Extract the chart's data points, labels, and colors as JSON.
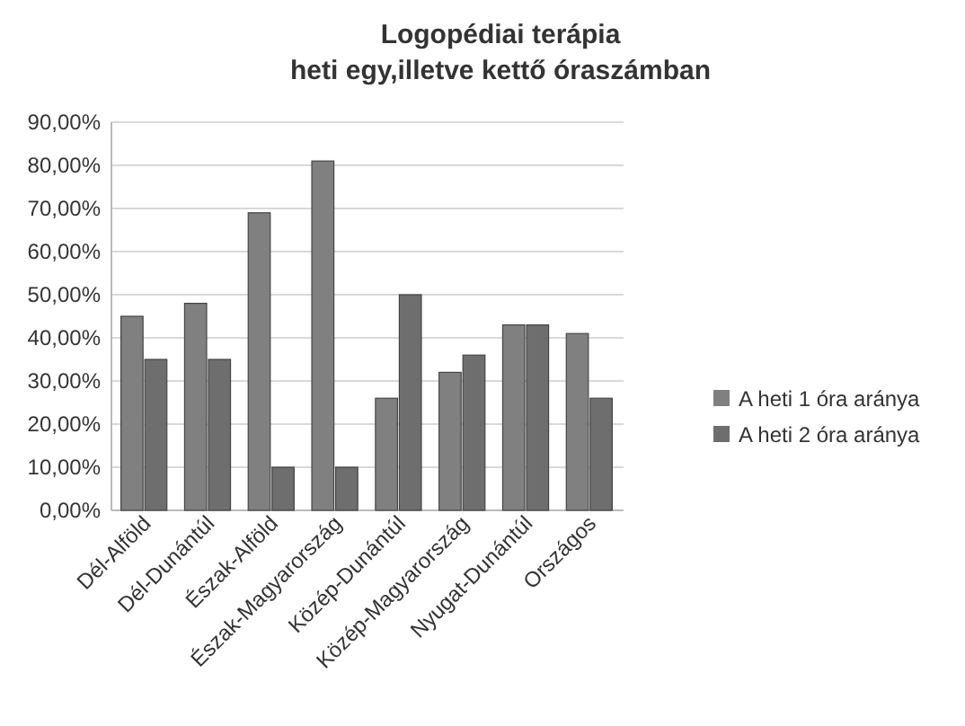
{
  "chart_data": {
    "type": "bar",
    "title": "Logopédiai terápia\nheti egy,illetve kettő óraszámban",
    "categories": [
      "Dél-Alföld",
      "Dél-Dunántúl",
      "Észak-Alföld",
      "Észak-Magyarország",
      "Közép-Dunántúl",
      "Közép-Magyarország",
      "Nyugat-Dunántúl",
      "Országos"
    ],
    "series": [
      {
        "name": "A heti 1 óra aránya",
        "color": "#808080",
        "values": [
          45,
          48,
          69,
          81,
          26,
          32,
          43,
          41
        ]
      },
      {
        "name": "A heti 2 óra aránya",
        "color": "#6e6e6e",
        "values": [
          35,
          35,
          10,
          10,
          50,
          36,
          43,
          26
        ]
      }
    ],
    "ylim": [
      0,
      90
    ],
    "yticks": [
      {
        "value": 0,
        "label": "0,00%"
      },
      {
        "value": 10,
        "label": "10,00%"
      },
      {
        "value": 20,
        "label": "20,00%"
      },
      {
        "value": 30,
        "label": "30,00%"
      },
      {
        "value": 40,
        "label": "40,00%"
      },
      {
        "value": 50,
        "label": "50,00%"
      },
      {
        "value": 60,
        "label": "60,00%"
      },
      {
        "value": 70,
        "label": "70,00%"
      },
      {
        "value": 80,
        "label": "80,00%"
      },
      {
        "value": 90,
        "label": "90,00%"
      }
    ],
    "grid": true,
    "legend": "right"
  }
}
